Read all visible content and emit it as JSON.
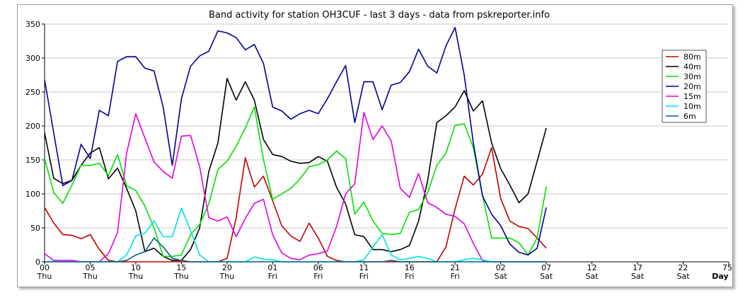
{
  "chart_data": {
    "type": "line",
    "title": "Band activity for station OH3CUF - last 3 days - data from pskreporter.info",
    "xlabel": "Day",
    "ylabel": "",
    "xlim": [
      0,
      75
    ],
    "ylim": [
      0,
      350
    ],
    "grid": "horizontal",
    "legend_position": "right",
    "yticks": [
      0,
      50,
      100,
      150,
      200,
      250,
      300,
      350
    ],
    "xticks": [
      {
        "x": 0,
        "label": "00",
        "sub": "Thu"
      },
      {
        "x": 5,
        "label": "05",
        "sub": "Thu"
      },
      {
        "x": 10,
        "label": "10",
        "sub": "Thu"
      },
      {
        "x": 15,
        "label": "15",
        "sub": "Thu"
      },
      {
        "x": 20,
        "label": "20",
        "sub": "Thu"
      },
      {
        "x": 25,
        "label": "01",
        "sub": "Fri"
      },
      {
        "x": 30,
        "label": "06",
        "sub": "Fri"
      },
      {
        "x": 35,
        "label": "11",
        "sub": "Fri"
      },
      {
        "x": 40,
        "label": "16",
        "sub": "Fri"
      },
      {
        "x": 45,
        "label": "21",
        "sub": "Fri"
      },
      {
        "x": 50,
        "label": "02",
        "sub": "Sat"
      },
      {
        "x": 55,
        "label": "07",
        "sub": "Sat"
      },
      {
        "x": 60,
        "label": "12",
        "sub": "Sat"
      },
      {
        "x": 65,
        "label": "17",
        "sub": "Sat"
      },
      {
        "x": 70,
        "label": "22",
        "sub": "Sat"
      },
      {
        "x": 75,
        "label": "",
        "sub": "Day"
      }
    ],
    "x": [
      0,
      1,
      2,
      3,
      4,
      5,
      6,
      7,
      8,
      9,
      10,
      11,
      12,
      13,
      14,
      15,
      16,
      17,
      18,
      19,
      20,
      21,
      22,
      23,
      24,
      25,
      26,
      27,
      28,
      29,
      30,
      31,
      32,
      33,
      34,
      35,
      36,
      37,
      38,
      39,
      40,
      41,
      42,
      43,
      44,
      45,
      46,
      47,
      48,
      49,
      50,
      51,
      52,
      53,
      54,
      55
    ],
    "series": [
      {
        "name": "80m",
        "color": "#c00000",
        "values": [
          80,
          57,
          40,
          39,
          34,
          40,
          18,
          2,
          0,
          0,
          0,
          0,
          0,
          0,
          0,
          0,
          0,
          0,
          0,
          0,
          5,
          65,
          153,
          110,
          126,
          90,
          53,
          38,
          30,
          57,
          35,
          8,
          2,
          0,
          0,
          0,
          0,
          0,
          0,
          0,
          0,
          0,
          0,
          0,
          22,
          78,
          126,
          113,
          129,
          168,
          93,
          60,
          52,
          49,
          35,
          20
        ]
      },
      {
        "name": "40m",
        "color": "#000000",
        "values": [
          190,
          123,
          115,
          120,
          142,
          160,
          168,
          122,
          138,
          108,
          75,
          15,
          20,
          8,
          2,
          2,
          18,
          50,
          133,
          175,
          270,
          238,
          265,
          238,
          180,
          158,
          155,
          148,
          145,
          146,
          155,
          148,
          110,
          85,
          40,
          37,
          18,
          18,
          15,
          18,
          24,
          60,
          120,
          205,
          215,
          228,
          252,
          222,
          237,
          175,
          137,
          113,
          87,
          100,
          148,
          197
        ]
      },
      {
        "name": "30m",
        "color": "#00e000",
        "values": [
          152,
          102,
          86,
          113,
          142,
          142,
          145,
          127,
          158,
          112,
          105,
          82,
          50,
          8,
          8,
          10,
          40,
          55,
          85,
          136,
          148,
          170,
          197,
          228,
          150,
          92,
          100,
          108,
          122,
          140,
          143,
          150,
          163,
          152,
          70,
          88,
          60,
          42,
          40,
          42,
          73,
          77,
          102,
          142,
          160,
          201,
          203,
          168,
          98,
          35,
          35,
          35,
          28,
          10,
          35,
          111
        ]
      },
      {
        "name": "20m",
        "color": "#000090",
        "values": [
          268,
          190,
          112,
          120,
          173,
          152,
          223,
          215,
          295,
          302,
          302,
          285,
          281,
          228,
          142,
          240,
          288,
          303,
          310,
          340,
          337,
          330,
          312,
          320,
          292,
          228,
          222,
          210,
          218,
          223,
          218,
          240,
          265,
          289,
          205,
          265,
          265,
          224,
          260,
          264,
          280,
          313,
          288,
          278,
          318,
          345,
          275,
          175,
          97,
          70,
          53,
          26,
          14,
          10,
          20,
          80
        ]
      },
      {
        "name": "15m",
        "color": "#e000e0",
        "values": [
          12,
          2,
          2,
          2,
          0,
          0,
          0,
          12,
          43,
          160,
          218,
          182,
          147,
          133,
          123,
          185,
          186,
          140,
          65,
          60,
          66,
          37,
          64,
          86,
          92,
          40,
          13,
          5,
          3,
          10,
          12,
          16,
          52,
          100,
          115,
          220,
          180,
          200,
          178,
          108,
          95,
          130,
          87,
          80,
          70,
          67,
          56,
          27,
          2,
          0,
          0,
          0,
          0,
          0,
          0,
          0
        ]
      },
      {
        "name": "10m",
        "color": "#00e0e0",
        "values": [
          0,
          0,
          0,
          0,
          0,
          0,
          0,
          0,
          0,
          10,
          38,
          42,
          60,
          37,
          37,
          79,
          46,
          10,
          0,
          0,
          0,
          0,
          0,
          7,
          4,
          3,
          0,
          0,
          0,
          0,
          0,
          0,
          0,
          0,
          0,
          3,
          22,
          40,
          10,
          3,
          5,
          8,
          5,
          0,
          0,
          0,
          3,
          5,
          3,
          0,
          0,
          0,
          0,
          0,
          0,
          0
        ]
      },
      {
        "name": "6m",
        "color": "#006080",
        "values": [
          0,
          0,
          0,
          0,
          0,
          0,
          0,
          0,
          0,
          2,
          10,
          15,
          35,
          22,
          5,
          2,
          0,
          0,
          0,
          0,
          0,
          0,
          0,
          0,
          0,
          0,
          0,
          0,
          0,
          0,
          0,
          0,
          0,
          0,
          0,
          0,
          0,
          0,
          2,
          0,
          0,
          0,
          0,
          0,
          0,
          0,
          0,
          0,
          0,
          0,
          0,
          0,
          0,
          0,
          0,
          0
        ]
      }
    ]
  }
}
